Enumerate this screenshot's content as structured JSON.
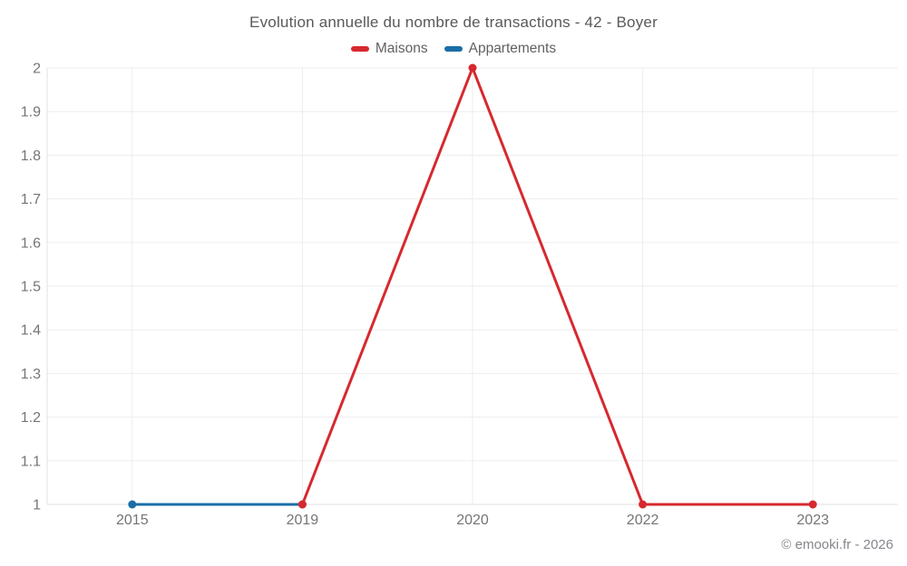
{
  "chart_data": {
    "type": "line",
    "title": "Evolution annuelle du nombre de transactions - 42 - Boyer",
    "categories": [
      "2015",
      "2019",
      "2020",
      "2022",
      "2023"
    ],
    "series": [
      {
        "name": "Maisons",
        "color": "#d7282f",
        "values": [
          null,
          1,
          2,
          1,
          1
        ]
      },
      {
        "name": "Appartements",
        "color": "#1a6ea5",
        "values": [
          1,
          1,
          null,
          null,
          null
        ]
      }
    ],
    "xlabel": "",
    "ylabel": "",
    "ylim": [
      1,
      2
    ],
    "ytick_step": 0.1,
    "grid": true,
    "legend_position": "top"
  },
  "footer": {
    "text": "© emooki.fr - 2026"
  },
  "colors": {
    "title_text": "#58595b",
    "legend_text": "#616161",
    "axis_tick_text": "#757575",
    "gridline": "#ededed",
    "axis_line": "#e0e0e0",
    "footer_text": "#85878c",
    "background": "#ffffff"
  }
}
